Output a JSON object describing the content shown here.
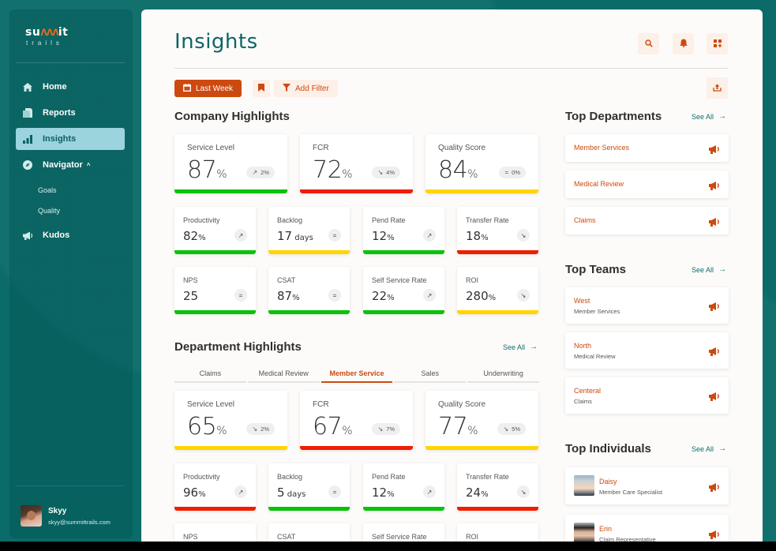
{
  "brand": {
    "logo_top_left": "su",
    "logo_top_mid": "^^^",
    "logo_top_right": "it",
    "logo_bottom": "trails"
  },
  "sidebar": {
    "items": [
      {
        "label": "Home",
        "icon": "home-icon"
      },
      {
        "label": "Reports",
        "icon": "reports-icon"
      },
      {
        "label": "Insights",
        "icon": "bar-chart-icon",
        "active": true
      },
      {
        "label": "Navigator",
        "icon": "compass-icon",
        "expanded": true
      }
    ],
    "subitems": [
      {
        "label": "Goals"
      },
      {
        "label": "Quality"
      }
    ],
    "kudos": {
      "label": "Kudos",
      "icon": "megaphone-icon"
    },
    "user": {
      "name": "Skyy",
      "email": "skyy@summittrails.com"
    }
  },
  "header": {
    "title": "Insights",
    "buttons": [
      "search-icon",
      "bell-icon",
      "grid-add-icon"
    ]
  },
  "toolbar": {
    "date_label": "Last Week",
    "filter_label": "Add Filter"
  },
  "colors": {
    "green": "#0ac20a",
    "red": "#f01e00",
    "yellow": "#ffd500",
    "accent": "#cc4a10",
    "teal": "#0d6666"
  },
  "company": {
    "title": "Company Highlights",
    "big": [
      {
        "label": "Service Level",
        "value": "87",
        "unit": "%",
        "trend": "up",
        "trend_glyph": "↗",
        "change": "2%",
        "status": "green"
      },
      {
        "label": "FCR",
        "value": "72",
        "unit": "%",
        "trend": "down",
        "trend_glyph": "↘",
        "change": "4%",
        "status": "red"
      },
      {
        "label": "Quality Score",
        "value": "84",
        "unit": "%",
        "trend": "flat",
        "trend_glyph": "=",
        "change": "0%",
        "status": "yellow"
      }
    ],
    "small": [
      {
        "label": "Productivity",
        "value": "82",
        "unit": "%",
        "trend_glyph": "↗",
        "status": "green"
      },
      {
        "label": "Backlog",
        "value": "17",
        "unit": " days",
        "trend_glyph": "=",
        "status": "yellow"
      },
      {
        "label": "Pend Rate",
        "value": "12",
        "unit": "%",
        "trend_glyph": "↗",
        "status": "green"
      },
      {
        "label": "Transfer Rate",
        "value": "18",
        "unit": "%",
        "trend_glyph": "↘",
        "status": "red"
      },
      {
        "label": "NPS",
        "value": "25",
        "unit": "",
        "trend_glyph": "=",
        "status": "green"
      },
      {
        "label": "CSAT",
        "value": "87",
        "unit": "%",
        "trend_glyph": "=",
        "status": "green"
      },
      {
        "label": "Self Service Rate",
        "value": "22",
        "unit": "%",
        "trend_glyph": "↗",
        "status": "green"
      },
      {
        "label": "ROI",
        "value": "280",
        "unit": "%",
        "trend_glyph": "↘",
        "status": "yellow"
      }
    ]
  },
  "department": {
    "title": "Department Highlights",
    "see_all": "See All",
    "tabs": [
      {
        "label": "Claims"
      },
      {
        "label": "Medical Review"
      },
      {
        "label": "Member Service",
        "active": true
      },
      {
        "label": "Sales"
      },
      {
        "label": "Underwriting"
      }
    ],
    "big": [
      {
        "label": "Service Level",
        "value": "65",
        "unit": "%",
        "trend_glyph": "↘",
        "change": "2%",
        "status": "yellow"
      },
      {
        "label": "FCR",
        "value": "67",
        "unit": "%",
        "trend_glyph": "↘",
        "change": "7%",
        "status": "red"
      },
      {
        "label": "Quality Score",
        "value": "77",
        "unit": "%",
        "trend_glyph": "↘",
        "change": "5%",
        "status": "yellow"
      }
    ],
    "small": [
      {
        "label": "Productivity",
        "value": "96",
        "unit": "%",
        "trend_glyph": "↗",
        "status": "red"
      },
      {
        "label": "Backlog",
        "value": "5",
        "unit": " days",
        "trend_glyph": "=",
        "status": "green"
      },
      {
        "label": "Pend Rate",
        "value": "12",
        "unit": "%",
        "trend_glyph": "↗",
        "status": "green"
      },
      {
        "label": "Transfer Rate",
        "value": "24",
        "unit": "%",
        "trend_glyph": "↘",
        "status": "red"
      },
      {
        "label": "NPS"
      },
      {
        "label": "CSAT"
      },
      {
        "label": "Self Service Rate"
      },
      {
        "label": "ROI"
      }
    ]
  },
  "top_departments": {
    "title": "Top Departments",
    "see_all": "See All",
    "items": [
      {
        "name": "Member Services"
      },
      {
        "name": "Medical Review"
      },
      {
        "name": "Claims"
      }
    ]
  },
  "top_teams": {
    "title": "Top Teams",
    "see_all": "See All",
    "items": [
      {
        "name": "West",
        "dept": "Member Services"
      },
      {
        "name": "North",
        "dept": "Medical Review"
      },
      {
        "name": "Centeral",
        "dept": "Claims"
      }
    ]
  },
  "top_individuals": {
    "title": "Top Individuals",
    "see_all": "See All",
    "items": [
      {
        "name": "Daisy",
        "role": "Member Care Specialist"
      },
      {
        "name": "Erin",
        "role": "Claim Representative"
      }
    ]
  }
}
